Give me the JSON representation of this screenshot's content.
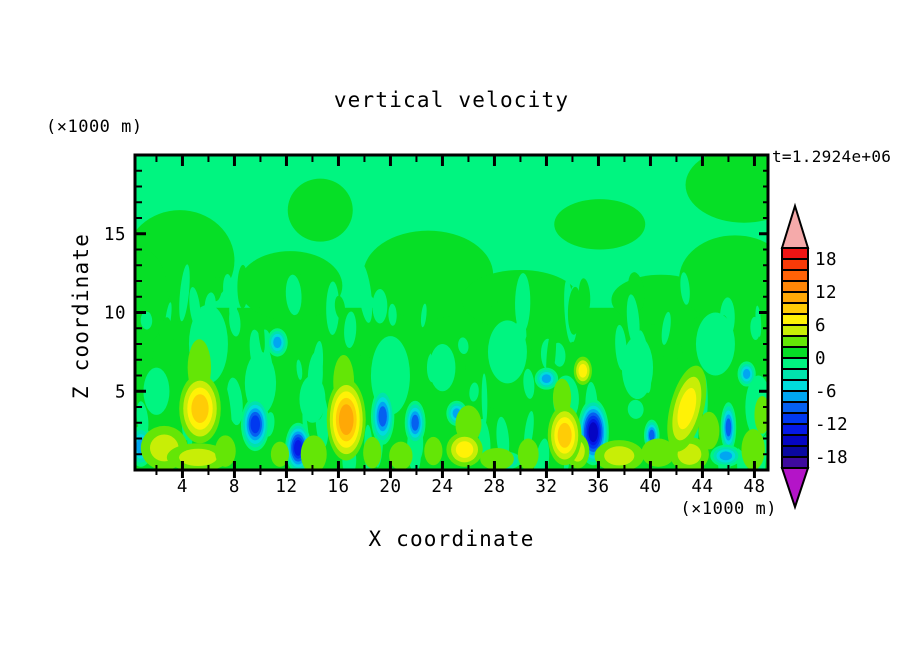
{
  "chart_data": {
    "type": "heatmap",
    "title": "vertical velocity",
    "xlabel": "X coordinate",
    "ylabel": "Z coordinate",
    "x_units": "(×1000 m)",
    "y_units": "(×1000 m)",
    "timestamp": "t=1.2924e+06",
    "xlim": [
      0.35,
      49.05
    ],
    "ylim": [
      0,
      20
    ],
    "xticks": [
      4,
      8,
      12,
      16,
      20,
      24,
      28,
      32,
      36,
      40,
      44,
      48
    ],
    "xtick_labels": [
      "4",
      "8",
      "12",
      "16",
      "20",
      "24",
      "28",
      "32",
      "36",
      "40",
      "44",
      "48"
    ],
    "xticks_minor_step": 2,
    "yticks": [
      5,
      10,
      15
    ],
    "ytick_labels": [
      "5",
      "10",
      "15"
    ],
    "yticks_minor_step": 1,
    "grid": false,
    "colorbar": {
      "labels": [
        "18",
        "12",
        "6",
        "0",
        "-6",
        "-12",
        "-18"
      ],
      "label_values": [
        18,
        12,
        6,
        0,
        -6,
        -12,
        -18
      ],
      "levels": [
        -20,
        -18,
        -16,
        -14,
        -12,
        -10,
        -8,
        -6,
        -4,
        -2,
        0,
        2,
        4,
        6,
        8,
        10,
        12,
        14,
        16,
        18,
        20
      ],
      "band_colors_low_to_high": [
        "#3E0A9E",
        "#0A08A0",
        "#0505C3",
        "#0519E6",
        "#0038F0",
        "#0560F0",
        "#00A6F2",
        "#00DCDC",
        "#00E3AC",
        "#00F580",
        "#06DF26",
        "#64E606",
        "#C8EE06",
        "#FFF206",
        "#FFCC06",
        "#FFA806",
        "#FF8606",
        "#FF6206",
        "#F83A08",
        "#EE1414"
      ],
      "over_color": "#F5AAAA",
      "under_color": "#B414C8"
    },
    "field": {
      "background_band": "-2..0 (spring green) aloft, 0..2 (green) in lower layer",
      "texture": {
        "streak_count": 150
      },
      "green_patches": [
        {
          "x": 3.8,
          "z": 13.3,
          "rx": 4.2,
          "rz": 3.2
        },
        {
          "x": 0.9,
          "z": 11.0,
          "rx": 2.0,
          "rz": 3.0
        },
        {
          "x": 12.3,
          "z": 11.7,
          "rx": 4.0,
          "rz": 2.2
        },
        {
          "x": 14.6,
          "z": 16.5,
          "rx": 2.5,
          "rz": 2.0
        },
        {
          "x": 22.9,
          "z": 12.4,
          "rx": 5.0,
          "rz": 2.8
        },
        {
          "x": 30.0,
          "z": 10.8,
          "rx": 4.5,
          "rz": 1.9
        },
        {
          "x": 36.1,
          "z": 15.6,
          "rx": 3.5,
          "rz": 1.6
        },
        {
          "x": 40.8,
          "z": 10.8,
          "rx": 3.8,
          "rz": 1.6
        },
        {
          "x": 47.2,
          "z": 18.1,
          "rx": 4.5,
          "rz": 2.4
        },
        {
          "x": 46.5,
          "z": 12.1,
          "rx": 4.3,
          "rz": 2.8
        }
      ],
      "mint_patches": [
        {
          "x": 2.0,
          "z": 5.0,
          "rx": 1.0,
          "rz": 1.5
        },
        {
          "x": 6.0,
          "z": 8.0,
          "rx": 1.5,
          "rz": 2.5
        },
        {
          "x": 10.0,
          "z": 5.5,
          "rx": 1.2,
          "rz": 2.0
        },
        {
          "x": 14.0,
          "z": 4.5,
          "rx": 1.0,
          "rz": 1.5
        },
        {
          "x": 20.0,
          "z": 6.0,
          "rx": 1.5,
          "rz": 2.5
        },
        {
          "x": 24.0,
          "z": 6.5,
          "rx": 1.0,
          "rz": 1.5
        },
        {
          "x": 29.0,
          "z": 7.5,
          "rx": 1.5,
          "rz": 2.0
        },
        {
          "x": 33.5,
          "z": 4.5,
          "rx": 1.0,
          "rz": 1.5
        },
        {
          "x": 39.0,
          "z": 6.5,
          "rx": 1.2,
          "rz": 2.0
        },
        {
          "x": 45.0,
          "z": 8.0,
          "rx": 1.5,
          "rz": 2.0
        },
        {
          "x": 48.3,
          "z": 4.0,
          "rx": 1.0,
          "rz": 2.0
        }
      ],
      "updrafts": [
        {
          "x": 5.35,
          "z": 3.9,
          "rx": 1.6,
          "ry": 2.2,
          "peak": 9.5,
          "rot": 0
        },
        {
          "x": 16.6,
          "z": 3.2,
          "rx": 1.5,
          "ry": 2.6,
          "peak": 11.5,
          "rot": 0
        },
        {
          "x": 25.7,
          "z": 1.3,
          "rx": 1.4,
          "ry": 1.1,
          "peak": 7,
          "rot": 0
        },
        {
          "x": 33.4,
          "z": 2.2,
          "rx": 1.3,
          "ry": 1.9,
          "peak": 9,
          "rot": 0
        },
        {
          "x": 42.8,
          "z": 3.9,
          "rx": 1.3,
          "ry": 2.8,
          "peak": 7.5,
          "rot": 14
        },
        {
          "x": 34.8,
          "z": 6.3,
          "rx": 0.7,
          "ry": 0.9,
          "peak": 7,
          "rot": 0
        }
      ],
      "updraft_flames": [
        {
          "x": 2.6,
          "z": 1.4,
          "rx": 1.8,
          "ry": 1.4,
          "peak": 5
        },
        {
          "x": 5.2,
          "z": 0.8,
          "rx": 2.4,
          "ry": 0.9,
          "peak": 5
        },
        {
          "x": 5.3,
          "z": 6.5,
          "rx": 0.9,
          "ry": 1.8,
          "peak": 4
        },
        {
          "x": 7.3,
          "z": 1.2,
          "rx": 0.8,
          "ry": 1.0,
          "peak": 4
        },
        {
          "x": 11.5,
          "z": 1.0,
          "rx": 0.7,
          "ry": 0.8,
          "peak": 4
        },
        {
          "x": 14.1,
          "z": 1.0,
          "rx": 1.0,
          "ry": 1.2,
          "peak": 4
        },
        {
          "x": 16.4,
          "z": 5.6,
          "rx": 0.8,
          "ry": 1.7,
          "peak": 4
        },
        {
          "x": 18.6,
          "z": 1.1,
          "rx": 0.7,
          "ry": 1.0,
          "peak": 4
        },
        {
          "x": 20.8,
          "z": 0.9,
          "rx": 0.9,
          "ry": 0.9,
          "peak": 4
        },
        {
          "x": 23.3,
          "z": 1.2,
          "rx": 0.7,
          "ry": 0.9,
          "peak": 4
        },
        {
          "x": 26.0,
          "z": 2.9,
          "rx": 1.0,
          "ry": 1.2,
          "peak": 4
        },
        {
          "x": 28.2,
          "z": 0.7,
          "rx": 1.3,
          "ry": 0.7,
          "peak": 4
        },
        {
          "x": 30.6,
          "z": 1.0,
          "rx": 0.8,
          "ry": 1.0,
          "peak": 4
        },
        {
          "x": 33.2,
          "z": 4.6,
          "rx": 0.7,
          "ry": 1.2,
          "peak": 4
        },
        {
          "x": 34.4,
          "z": 1.2,
          "rx": 0.9,
          "ry": 1.1,
          "peak": 5
        },
        {
          "x": 37.6,
          "z": 0.9,
          "rx": 1.9,
          "ry": 1.0,
          "peak": 5
        },
        {
          "x": 40.6,
          "z": 1.1,
          "rx": 1.3,
          "ry": 0.9,
          "peak": 4
        },
        {
          "x": 43.0,
          "z": 1.0,
          "rx": 1.5,
          "ry": 1.1,
          "peak": 5
        },
        {
          "x": 44.5,
          "z": 2.5,
          "rx": 0.8,
          "ry": 1.2,
          "peak": 4
        },
        {
          "x": 47.9,
          "z": 1.3,
          "rx": 0.9,
          "ry": 1.3,
          "peak": 4
        },
        {
          "x": 48.6,
          "z": 3.5,
          "rx": 0.6,
          "ry": 1.2,
          "peak": 4
        }
      ],
      "downdrafts": [
        {
          "x": 9.6,
          "z": 2.9,
          "rx": 1.1,
          "ry": 1.7,
          "peak": -11
        },
        {
          "x": 12.9,
          "z": 1.4,
          "rx": 1.0,
          "ry": 1.6,
          "peak": -13
        },
        {
          "x": 19.4,
          "z": 3.4,
          "rx": 0.9,
          "ry": 1.8,
          "peak": -9
        },
        {
          "x": 21.9,
          "z": 3.0,
          "rx": 0.8,
          "ry": 1.4,
          "peak": -9
        },
        {
          "x": 35.6,
          "z": 2.4,
          "rx": 1.2,
          "ry": 2.1,
          "peak": -15
        },
        {
          "x": 40.1,
          "z": 2.2,
          "rx": 0.6,
          "ry": 1.0,
          "peak": -10
        },
        {
          "x": 46.0,
          "z": 2.7,
          "rx": 0.6,
          "ry": 1.6,
          "peak": -10
        },
        {
          "x": 0.8,
          "z": 1.5,
          "rx": 0.9,
          "ry": 1.3,
          "peak": -8
        },
        {
          "x": 11.3,
          "z": 8.1,
          "rx": 0.8,
          "ry": 0.9,
          "peak": -6.5
        },
        {
          "x": 32.0,
          "z": 5.8,
          "rx": 0.9,
          "ry": 0.7,
          "peak": -6.5
        },
        {
          "x": 47.4,
          "z": 6.1,
          "rx": 0.7,
          "ry": 0.8,
          "peak": -6.5
        },
        {
          "x": 25.1,
          "z": 3.6,
          "rx": 0.8,
          "ry": 0.8,
          "peak": -7
        },
        {
          "x": 40.7,
          "z": 1.0,
          "rx": 0.9,
          "ry": 0.6,
          "peak": -7
        },
        {
          "x": 28.6,
          "z": 0.6,
          "rx": 1.5,
          "ry": 0.6,
          "peak": -6.5
        },
        {
          "x": 45.8,
          "z": 0.9,
          "rx": 1.2,
          "ry": 0.7,
          "peak": -6.5
        }
      ]
    }
  }
}
